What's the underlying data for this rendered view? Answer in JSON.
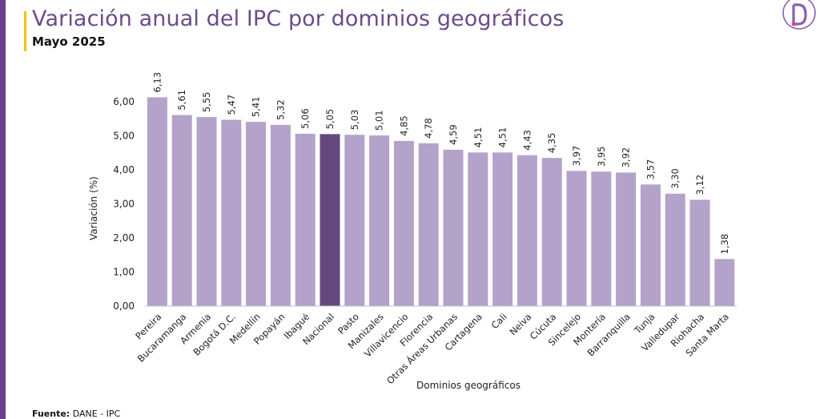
{
  "header": {
    "title": "Variación anual del IPC por dominios geográficos",
    "subtitle": "Mayo 2025"
  },
  "footer": {
    "source_label": "Fuente:",
    "source_value": "DANE - IPC"
  },
  "logo": {
    "name": "logo-d-icon"
  },
  "colors": {
    "bar": "#b3a2ca",
    "highlight": "#644a7c",
    "accent": "#f2c500",
    "brand": "#6a3f8f"
  },
  "chart_data": {
    "type": "bar",
    "title": "Variación anual del IPC por dominios geográficos",
    "subtitle": "Mayo 2025",
    "xlabel": "Dominios geográficos",
    "ylabel": "Variación (%)",
    "ylim": [
      0,
      6
    ],
    "yticks": [
      "0,00",
      "1,00",
      "2,00",
      "3,00",
      "4,00",
      "5,00",
      "6,00"
    ],
    "highlight_category": "Nacional",
    "categories": [
      "Pereira",
      "Bucaramanga",
      "Armenia",
      "Bogotá D.C.",
      "Medellín",
      "Popayán",
      "Ibagué",
      "Nacional",
      "Pasto",
      "Manizales",
      "Villavicencio",
      "Florencia",
      "Otras Áreas Urbanas",
      "Cartagena",
      "Cali",
      "Neiva",
      "Cúcuta",
      "Sincelejo",
      "Montería",
      "Barranquilla",
      "Tunja",
      "Valledupar",
      "Riohacha",
      "Santa Marta"
    ],
    "values": [
      6.13,
      5.61,
      5.55,
      5.47,
      5.41,
      5.32,
      5.06,
      5.05,
      5.03,
      5.01,
      4.85,
      4.78,
      4.59,
      4.51,
      4.51,
      4.43,
      4.35,
      3.97,
      3.95,
      3.92,
      3.57,
      3.3,
      3.12,
      1.38
    ],
    "value_labels": [
      "6,13",
      "5,61",
      "5,55",
      "5,47",
      "5,41",
      "5,32",
      "5,06",
      "5,05",
      "5,03",
      "5,01",
      "4,85",
      "4,78",
      "4,59",
      "4,51",
      "4,51",
      "4,43",
      "4,35",
      "3,97",
      "3,95",
      "3,92",
      "3,57",
      "3,30",
      "3,12",
      "1,38"
    ],
    "grid": false,
    "legend": "none"
  }
}
